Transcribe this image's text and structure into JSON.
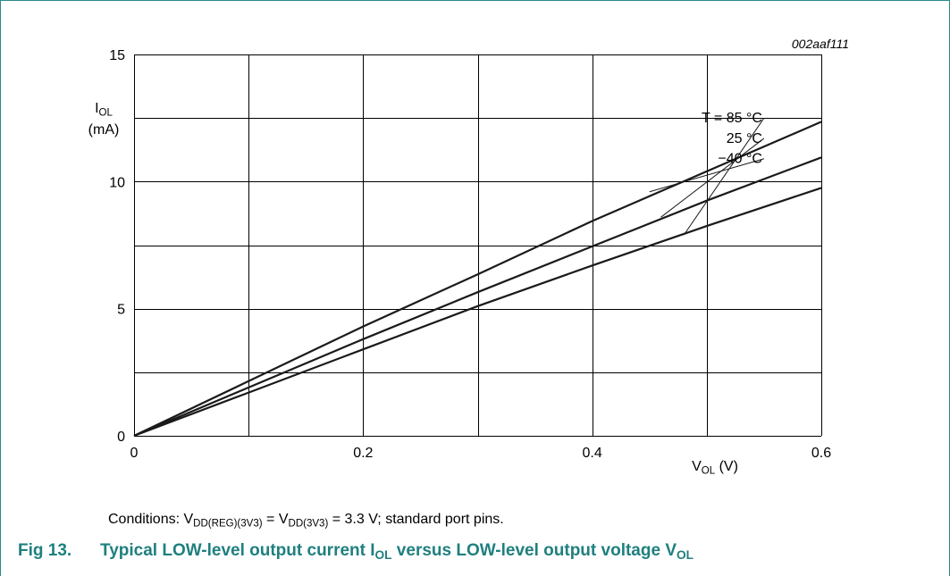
{
  "colors": {
    "frame": "#2a8a8a",
    "caption": "#1f7f7f",
    "grid": "#000000",
    "curve": "#1a1a1a"
  },
  "figure": {
    "ref_id": "002aaf111",
    "number": "Fig 13.",
    "title_part1": "Typical LOW-level output current I",
    "title_sub1": "OL",
    "title_part2": " versus LOW-level output voltage V",
    "title_sub2": "OL"
  },
  "conditions": {
    "prefix": "Conditions: V",
    "sub1": "DD(REG)(3V3)",
    "mid": " = V",
    "sub2": "DD(3V3)",
    "suffix": " = 3.3 V; standard port pins."
  },
  "axes": {
    "y_main": "I",
    "y_sub": "OL",
    "y_unit": "(mA)",
    "x_main": "V",
    "x_sub": "OL",
    "x_unit": " (V)"
  },
  "chart_data": {
    "type": "line",
    "x_ticks": [
      0,
      0.2,
      0.4,
      0.6
    ],
    "x_tick_labels": [
      "0",
      "0.2",
      "0.4",
      "0.6"
    ],
    "y_ticks": [
      0,
      5,
      10,
      15
    ],
    "y_tick_labels": [
      "0",
      "5",
      "10",
      "15"
    ],
    "xlim": [
      0,
      0.6
    ],
    "ylim": [
      0,
      15
    ],
    "x_grid_step": 0.1,
    "y_grid_step": 2.5,
    "grid": true,
    "series": [
      {
        "name": "T = 85 °C",
        "x": [
          0,
          0.1,
          0.2,
          0.3,
          0.4,
          0.5,
          0.6
        ],
        "y": [
          0,
          1.7,
          3.4,
          5.1,
          6.7,
          8.25,
          9.75
        ]
      },
      {
        "name": "25 °C",
        "x": [
          0,
          0.1,
          0.2,
          0.3,
          0.4,
          0.5,
          0.6
        ],
        "y": [
          0,
          1.9,
          3.8,
          5.65,
          7.45,
          9.25,
          10.95
        ]
      },
      {
        "name": "−40 °C",
        "x": [
          0,
          0.1,
          0.2,
          0.3,
          0.4,
          0.5,
          0.6
        ],
        "y": [
          0,
          2.15,
          4.3,
          6.35,
          8.45,
          10.4,
          12.35
        ]
      }
    ],
    "annotations": [
      {
        "series": 0,
        "label": "T = 85 °C",
        "label_x": 0.55,
        "label_y": 12.5,
        "point_x": 0.48,
        "point_y": 7.9
      },
      {
        "series": 1,
        "label": "25 °C",
        "label_x": 0.55,
        "label_y": 11.7,
        "point_x": 0.46,
        "point_y": 8.6
      },
      {
        "series": 2,
        "label": "−40 °C",
        "label_x": 0.55,
        "label_y": 10.9,
        "point_x": 0.45,
        "point_y": 9.6
      }
    ]
  }
}
